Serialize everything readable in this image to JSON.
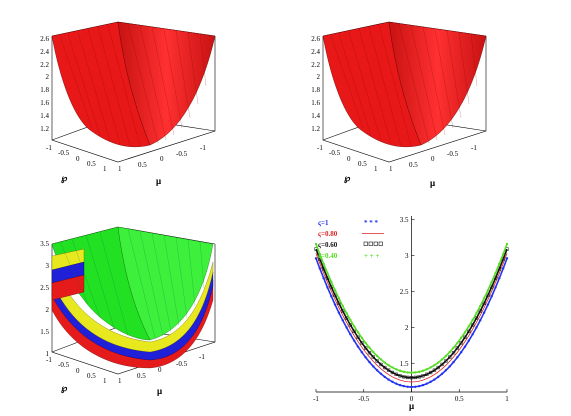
{
  "charts": [
    {
      "type": "surface3d",
      "surface_color": "#ee1c1c",
      "axis_labels": {
        "x": "℘",
        "y": "μ"
      },
      "z_ticks": [
        "1.2",
        "1.4",
        "1.6",
        "1.8",
        "2",
        "2.2",
        "2.4",
        "2.6"
      ],
      "x_ticks": [
        "-1",
        "-0.5",
        "0",
        "0.5",
        "1"
      ],
      "y_ticks": [
        "1",
        "0.5",
        "0",
        "-0.5",
        "-1"
      ]
    },
    {
      "type": "surface3d",
      "surface_color": "#ee1c1c",
      "axis_labels": {
        "x": "℘",
        "y": "μ"
      },
      "z_ticks": [
        "1.2",
        "1.4",
        "1.6",
        "1.8",
        "2",
        "2.2",
        "2.4",
        "2.6"
      ],
      "x_ticks": [
        "-1",
        "-0.5",
        "0",
        "0.5",
        "1"
      ],
      "y_ticks": [
        "1",
        "0.5",
        "0",
        "-0.5",
        "-1"
      ]
    },
    {
      "type": "surface3d",
      "surface_colors": [
        "#33ee33",
        "#eeee22",
        "#2222dd",
        "#ee2222"
      ],
      "axis_labels": {
        "x": "℘",
        "y": "μ"
      },
      "z_ticks": [
        "1",
        "1.5",
        "2",
        "2.5",
        "3",
        "3.5"
      ],
      "x_ticks": [
        "-1",
        "-0.5",
        "0",
        "0.5",
        "1"
      ],
      "y_ticks": [
        "1",
        "0.5",
        "0",
        "-0.5",
        "-1"
      ]
    }
  ],
  "chart_data": {
    "type": "line",
    "xlabel": "μ",
    "xlim": [
      -1,
      1
    ],
    "ylim": [
      1.1,
      3.55
    ],
    "x_ticks": [
      -1,
      -0.5,
      0,
      0.5,
      1
    ],
    "x_tick_labels": [
      "-1",
      "-0.5",
      "0",
      "0.5",
      "1"
    ],
    "y_ticks": [
      1.5,
      2,
      2.5,
      3,
      3.5
    ],
    "y_tick_labels": [
      "1.5",
      "2",
      "2.5",
      "3",
      "3.5"
    ],
    "legend_position": "top-left",
    "series": [
      {
        "name": "ς=1",
        "color": "#2233ee",
        "marker": "star",
        "y0": 1.17,
        "curv": 1.79
      },
      {
        "name": "ς=0.80",
        "color": "#dd2222",
        "marker": "line",
        "y0": 1.24,
        "curv": 1.79
      },
      {
        "name": "ς=0.60",
        "color": "#111111",
        "marker": "square",
        "y0": 1.3,
        "curv": 1.79
      },
      {
        "name": "ς=0.40",
        "color": "#55dd22",
        "marker": "cross",
        "y0": 1.37,
        "curv": 1.79
      }
    ]
  }
}
